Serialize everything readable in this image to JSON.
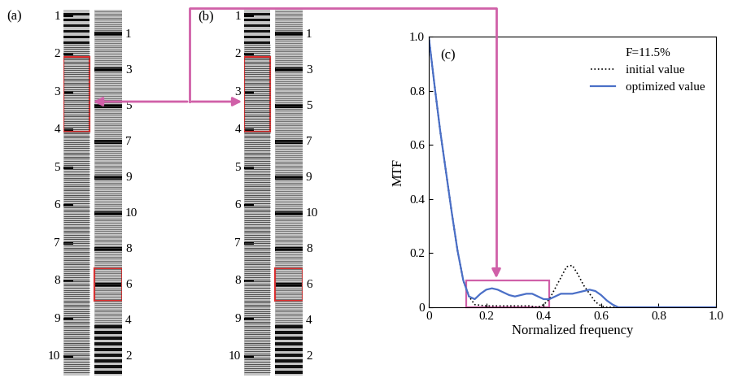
{
  "panels": [
    {
      "label": "(a)",
      "left_scale": [
        1,
        2,
        3,
        4,
        5,
        6,
        7,
        8,
        9,
        10
      ],
      "right_scale": [
        1,
        3,
        5,
        7,
        9,
        10,
        8,
        6,
        4,
        2
      ]
    },
    {
      "label": "(b)",
      "left_scale": [
        1,
        2,
        3,
        4,
        5,
        6,
        7,
        8,
        9,
        10
      ],
      "right_scale": [
        1,
        3,
        5,
        7,
        9,
        10,
        8,
        6,
        4,
        2
      ]
    }
  ],
  "chart_data": {
    "type": "line",
    "label": "(c)",
    "annotation": "F=11.5%",
    "x_label": "Normalized frequency",
    "y_label": "MTF",
    "xlim": [
      0,
      1.0
    ],
    "ylim": [
      0,
      1.0
    ],
    "xticks": [
      0,
      0.2,
      0.4,
      0.6,
      0.8,
      1.0
    ],
    "yticks": [
      0,
      0.2,
      0.4,
      0.6,
      0.8,
      1.0
    ],
    "legend": "upper right",
    "series": [
      {
        "name": "initial value",
        "color": "#000000",
        "line_style": "dotted",
        "x": [
          0,
          0.02,
          0.04,
          0.06,
          0.08,
          0.1,
          0.12,
          0.14,
          0.16,
          0.2,
          0.25,
          0.3,
          0.35,
          0.38,
          0.4,
          0.42,
          0.44,
          0.46,
          0.48,
          0.5,
          0.52,
          0.54,
          0.56,
          0.58,
          0.6,
          0.62,
          0.7,
          0.8,
          0.9,
          1.0
        ],
        "values": [
          1,
          0.82,
          0.65,
          0.5,
          0.35,
          0.21,
          0.1,
          0.04,
          0.01,
          0.005,
          0.005,
          0.005,
          0.005,
          0,
          0.01,
          0.03,
          0.07,
          0.11,
          0.15,
          0.155,
          0.12,
          0.08,
          0.05,
          0.02,
          0.005,
          0,
          0,
          0,
          0,
          0
        ]
      },
      {
        "name": "optimized value",
        "color": "#4a6fc7",
        "line_style": "solid",
        "x": [
          0,
          0.02,
          0.04,
          0.06,
          0.08,
          0.1,
          0.12,
          0.14,
          0.16,
          0.18,
          0.2,
          0.22,
          0.24,
          0.26,
          0.28,
          0.3,
          0.32,
          0.34,
          0.36,
          0.38,
          0.4,
          0.42,
          0.44,
          0.46,
          0.48,
          0.5,
          0.52,
          0.54,
          0.56,
          0.58,
          0.6,
          0.62,
          0.64,
          0.66,
          0.7,
          0.8,
          0.9,
          1.0
        ],
        "values": [
          1,
          0.82,
          0.65,
          0.5,
          0.35,
          0.21,
          0.1,
          0.04,
          0.03,
          0.05,
          0.065,
          0.07,
          0.065,
          0.055,
          0.045,
          0.04,
          0.045,
          0.05,
          0.05,
          0.04,
          0.03,
          0.03,
          0.04,
          0.05,
          0.05,
          0.05,
          0.055,
          0.06,
          0.065,
          0.06,
          0.045,
          0.025,
          0.01,
          0,
          0,
          0,
          0,
          0
        ]
      }
    ]
  }
}
